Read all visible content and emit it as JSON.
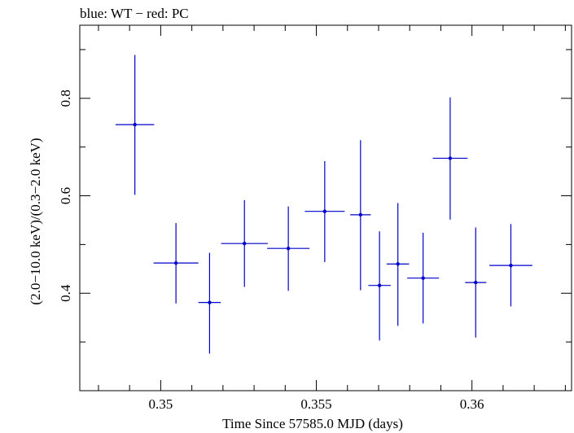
{
  "chart_data": {
    "type": "scatter",
    "title": "blue: WT − red: PC",
    "xlabel": "Time Since 57585.0 MJD (days)",
    "ylabel": "(2.0−10.0 keV)/(0.3−2.0 keV)",
    "xlim": [
      0.3474,
      0.3632
    ],
    "ylim": [
      0.2,
      0.95
    ],
    "x_ticks": [
      0.35,
      0.355,
      0.36
    ],
    "x_tick_labels": [
      "0.35",
      "0.355",
      "0.36"
    ],
    "y_ticks": [
      0.4,
      0.6,
      0.8
    ],
    "y_tick_labels": [
      "0.4",
      "0.6",
      "0.8"
    ],
    "series": [
      {
        "color": "#0000cc",
        "points": [
          {
            "x": 0.34917,
            "y": 0.746,
            "xerr": 0.00062,
            "ylo": 0.602,
            "yhi": 0.889
          },
          {
            "x": 0.35049,
            "y": 0.462,
            "xerr": 0.00072,
            "ylo": 0.379,
            "yhi": 0.544
          },
          {
            "x": 0.35157,
            "y": 0.381,
            "xerr": 0.00036,
            "ylo": 0.276,
            "yhi": 0.483
          },
          {
            "x": 0.35269,
            "y": 0.502,
            "xerr": 0.00075,
            "ylo": 0.413,
            "yhi": 0.591
          },
          {
            "x": 0.3541,
            "y": 0.492,
            "xerr": 0.00068,
            "ylo": 0.405,
            "yhi": 0.578
          },
          {
            "x": 0.35527,
            "y": 0.568,
            "xerr": 0.00064,
            "ylo": 0.464,
            "yhi": 0.671
          },
          {
            "x": 0.35642,
            "y": 0.561,
            "xerr": 0.00033,
            "ylo": 0.406,
            "yhi": 0.714
          },
          {
            "x": 0.35703,
            "y": 0.416,
            "xerr": 0.00036,
            "ylo": 0.303,
            "yhi": 0.527
          },
          {
            "x": 0.35762,
            "y": 0.46,
            "xerr": 0.00036,
            "ylo": 0.333,
            "yhi": 0.585
          },
          {
            "x": 0.35843,
            "y": 0.431,
            "xerr": 0.00051,
            "ylo": 0.338,
            "yhi": 0.524
          },
          {
            "x": 0.3593,
            "y": 0.677,
            "xerr": 0.00056,
            "ylo": 0.551,
            "yhi": 0.802
          },
          {
            "x": 0.36012,
            "y": 0.422,
            "xerr": 0.00034,
            "ylo": 0.309,
            "yhi": 0.535
          },
          {
            "x": 0.36125,
            "y": 0.457,
            "xerr": 0.00069,
            "ylo": 0.373,
            "yhi": 0.542
          }
        ]
      }
    ]
  }
}
